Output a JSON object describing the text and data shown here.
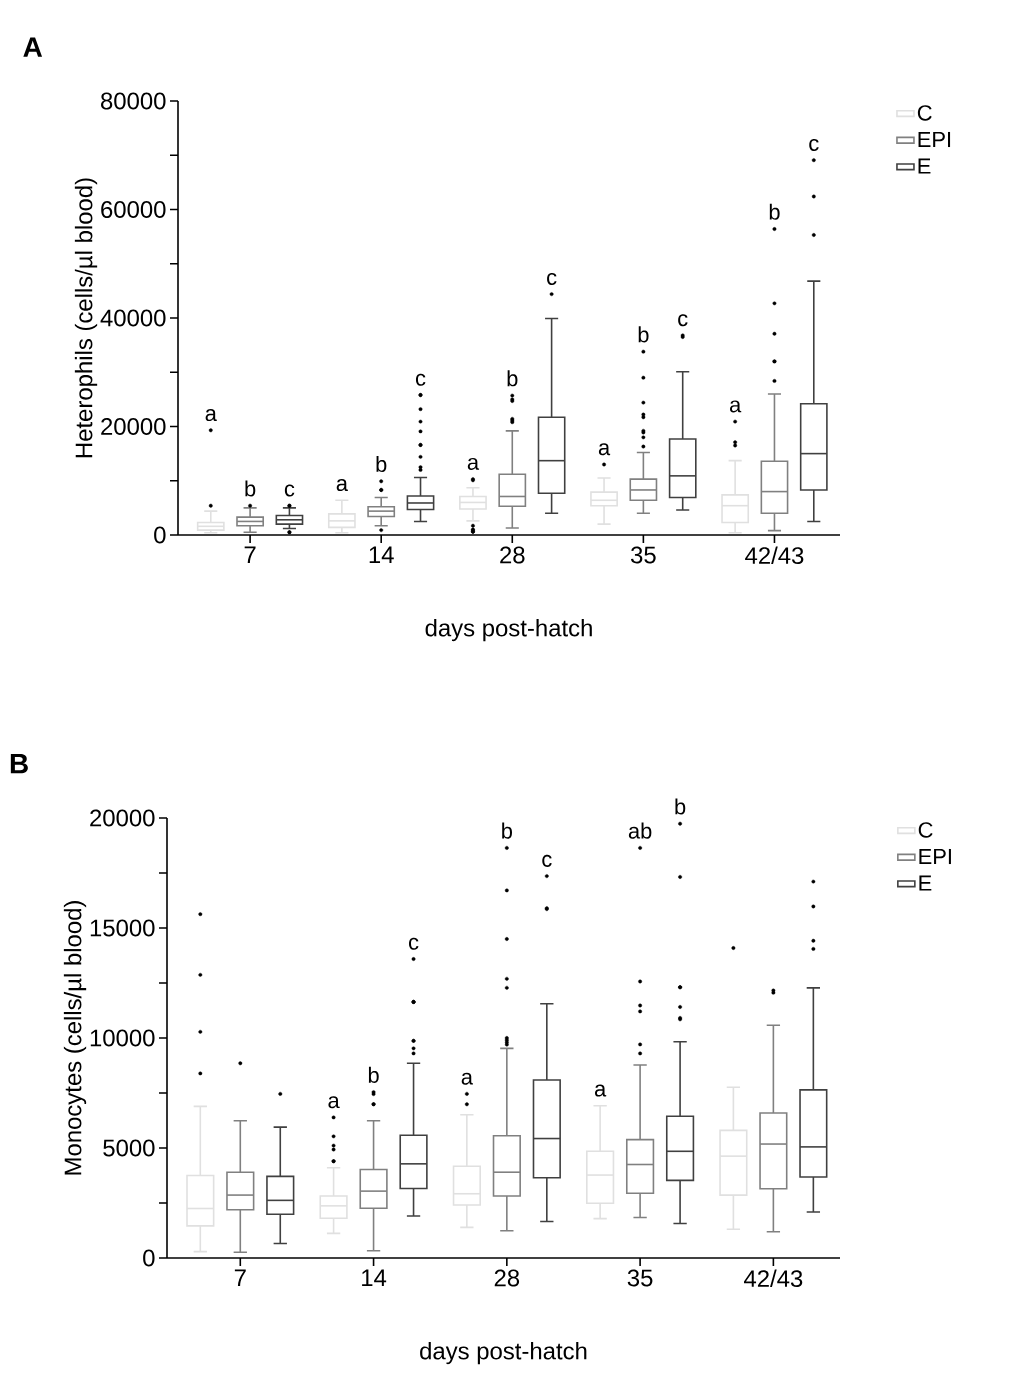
{
  "chart_data": [
    {
      "type": "box",
      "title": "A",
      "xlabel": "days post-hatch",
      "ylabel": "Heterophils (cells/µl blood)",
      "categories": [
        "7",
        "14",
        "28",
        "35",
        "42/43"
      ],
      "ylim": [
        0,
        80000
      ],
      "yticks": [
        0,
        {
          "value": 10000,
          "label": null
        },
        20000,
        {
          "value": 30000,
          "label": null
        },
        40000,
        {
          "value": 50000,
          "label": null
        },
        60000,
        {
          "value": 70000,
          "label": null
        },
        80000
      ],
      "legend": "top right",
      "marker": "circle",
      "series": [
        {
          "name": "C",
          "color": "#e0e0e0",
          "boxes": [
            {
              "low": 400,
              "q1": 900,
              "median": 1600,
              "q3": 2300,
              "high": 4400,
              "outliers": [
                5400,
                19300
              ]
            },
            {
              "low": 400,
              "q1": 1400,
              "median": 2600,
              "q3": 3900,
              "high": 6400
            },
            {
              "low": 2600,
              "q1": 4800,
              "median": 6000,
              "q3": 7100,
              "high": 8700,
              "outliers": [
                10300,
                10100,
                1700,
                1000,
                600,
                600,
                900
              ]
            },
            {
              "low": 2000,
              "q1": 5400,
              "median": 6400,
              "q3": 7900,
              "high": 10500,
              "outliers": [
                13000
              ]
            },
            {
              "low": 400,
              "q1": 2300,
              "median": 5400,
              "q3": 7400,
              "high": 13700,
              "outliers": [
                16500,
                17100,
                20900
              ]
            }
          ]
        },
        {
          "name": "EPI",
          "color": "#808080",
          "boxes": [
            {
              "low": 500,
              "q1": 1700,
              "median": 2500,
              "q3": 3300,
              "high": 5000,
              "outliers": [
                5400
              ]
            },
            {
              "low": 1700,
              "q1": 3400,
              "median": 4400,
              "q3": 5200,
              "high": 6900,
              "outliers": [
                8300,
                8300,
                9900,
                900
              ]
            },
            {
              "low": 1300,
              "q1": 5300,
              "median": 7100,
              "q3": 11200,
              "high": 19200,
              "outliers": [
                20800,
                21100,
                21400,
                24700,
                25000,
                25700
              ]
            },
            {
              "low": 4000,
              "q1": 6400,
              "median": 8300,
              "q3": 10300,
              "high": 15200,
              "outliers": [
                16300,
                18000,
                18900,
                19200,
                21700,
                22200,
                24400,
                29000,
                33800
              ]
            },
            {
              "low": 800,
              "q1": 4000,
              "median": 8000,
              "q3": 13600,
              "high": 26000,
              "outliers": [
                28400,
                32000,
                32000,
                37100,
                42700,
                56400
              ]
            }
          ]
        },
        {
          "name": "E",
          "color": "#404040",
          "boxes": [
            {
              "low": 1200,
              "q1": 2000,
              "median": 2800,
              "q3": 3600,
              "high": 5000,
              "outliers": [
                5400,
                5400,
                500,
                500
              ]
            },
            {
              "low": 2500,
              "q1": 4700,
              "median": 5900,
              "q3": 7200,
              "high": 10600,
              "outliers": [
                12000,
                12500,
                14400,
                16600,
                16600,
                19100,
                20900,
                23200,
                25800,
                25800
              ]
            },
            {
              "low": 4000,
              "q1": 7700,
              "median": 13700,
              "q3": 21700,
              "high": 39900,
              "outliers": [
                44400
              ]
            },
            {
              "low": 4600,
              "q1": 6900,
              "median": 10900,
              "q3": 17700,
              "high": 30100,
              "outliers": [
                36500,
                36800
              ]
            },
            {
              "low": 2500,
              "q1": 8300,
              "median": 15000,
              "q3": 24200,
              "high": 46800,
              "outliers": [
                55300,
                62400,
                69100
              ]
            }
          ]
        }
      ],
      "annotations": [
        "a",
        "b",
        "c",
        "a",
        "b",
        "c",
        "a",
        "b",
        "c",
        "a",
        "b",
        "c",
        "a",
        "b",
        "c"
      ]
    },
    {
      "type": "box",
      "title": "B",
      "xlabel": "days post-hatch",
      "ylabel": "Monocytes (cells/µl blood)",
      "categories": [
        "7",
        "14",
        "28",
        "35",
        "42/43"
      ],
      "ylim": [
        0,
        20000
      ],
      "yticks": [
        0,
        {
          "value": 2500,
          "label": null
        },
        5000,
        {
          "value": 7500,
          "label": null
        },
        10000,
        {
          "value": 12500,
          "label": null
        },
        15000,
        {
          "value": 17500,
          "label": null
        },
        20000
      ],
      "legend": "top right",
      "marker": "circle",
      "series": [
        {
          "name": "C",
          "color": "#e0e0e0",
          "boxes": [
            {
              "low": 290,
              "q1": 1460,
              "median": 2250,
              "q3": 3750,
              "high": 6890,
              "outliers": [
                8390,
                10280,
                12870,
                15630
              ]
            },
            {
              "low": 1120,
              "q1": 1810,
              "median": 2370,
              "q3": 2820,
              "high": 4100,
              "outliers": [
                4400,
                4400,
                4930,
                5110,
                5530,
                6390
              ]
            },
            {
              "low": 1390,
              "q1": 2410,
              "median": 2920,
              "q3": 4170,
              "high": 6510,
              "outliers": [
                6990,
                7460
              ]
            },
            {
              "low": 1790,
              "q1": 2490,
              "median": 3770,
              "q3": 4850,
              "high": 6920
            },
            {
              "low": 1310,
              "q1": 2860,
              "median": 4630,
              "q3": 5800,
              "high": 7760,
              "outliers": [
                14090
              ]
            }
          ]
        },
        {
          "name": "EPI",
          "color": "#808080",
          "boxes": [
            {
              "low": 260,
              "q1": 2190,
              "median": 2860,
              "q3": 3900,
              "high": 6240,
              "outliers": [
                8850
              ]
            },
            {
              "low": 330,
              "q1": 2260,
              "median": 3040,
              "q3": 4020,
              "high": 6240,
              "outliers": [
                6990,
                6990,
                7450,
                7540
              ]
            },
            {
              "low": 1240,
              "q1": 2820,
              "median": 3900,
              "q3": 5560,
              "high": 9530,
              "outliers": [
                9700,
                9800,
                9900,
                10000,
                12280,
                12690,
                14500,
                16710,
                18640
              ]
            },
            {
              "low": 1840,
              "q1": 2940,
              "median": 4250,
              "q3": 5380,
              "high": 8770,
              "outliers": [
                9300,
                9710,
                11210,
                11480,
                12570,
                18640
              ]
            },
            {
              "low": 1190,
              "q1": 3150,
              "median": 5180,
              "q3": 6590,
              "high": 10580,
              "outliers": [
                12060,
                12160
              ]
            }
          ]
        },
        {
          "name": "E",
          "color": "#404040",
          "boxes": [
            {
              "low": 660,
              "q1": 1990,
              "median": 2620,
              "q3": 3710,
              "high": 5950,
              "outliers": [
                7460
              ]
            },
            {
              "low": 1910,
              "q1": 3160,
              "median": 4280,
              "q3": 5580,
              "high": 8850,
              "outliers": [
                9300,
                9530,
                9870,
                9870,
                11640,
                11640,
                11640,
                13590
              ]
            },
            {
              "low": 1660,
              "q1": 3650,
              "median": 5430,
              "q3": 8090,
              "high": 11560,
              "outliers": [
                15860,
                15900,
                17360
              ]
            },
            {
              "low": 1570,
              "q1": 3530,
              "median": 4850,
              "q3": 6440,
              "high": 9830,
              "outliers": [
                10850,
                10910,
                11410,
                12310,
                12310,
                17320,
                19740
              ]
            },
            {
              "low": 2090,
              "q1": 3680,
              "median": 5050,
              "q3": 7640,
              "high": 12280,
              "outliers": [
                14050,
                14420,
                15980,
                17110
              ]
            }
          ]
        }
      ],
      "annotations": [
        "a",
        "b",
        "c",
        "a",
        "b",
        "c",
        "a",
        "ab",
        "b"
      ]
    }
  ]
}
